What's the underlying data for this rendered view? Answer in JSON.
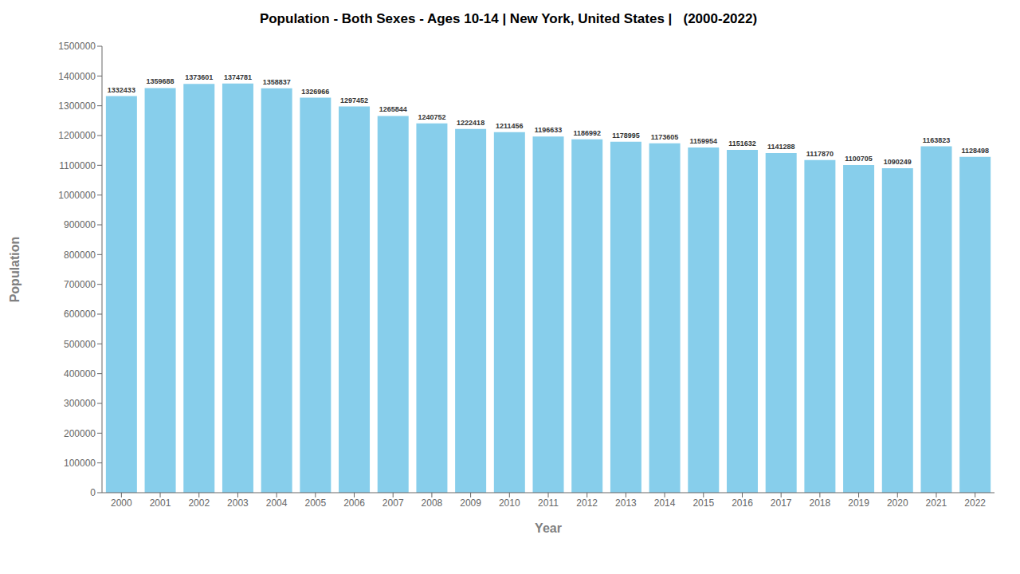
{
  "chart_data": {
    "type": "bar",
    "title": "Population - Both Sexes - Ages 10-14 | New York, United States |   (2000-2022)",
    "xlabel": "Year",
    "ylabel": "Population",
    "categories": [
      2000,
      2001,
      2002,
      2003,
      2004,
      2005,
      2006,
      2007,
      2008,
      2009,
      2010,
      2011,
      2012,
      2013,
      2014,
      2015,
      2016,
      2017,
      2018,
      2019,
      2020,
      2021,
      2022
    ],
    "values": [
      1332433,
      1359688,
      1373601,
      1374781,
      1358837,
      1326966,
      1297452,
      1265844,
      1240752,
      1222418,
      1211456,
      1196633,
      1186992,
      1178995,
      1173605,
      1159954,
      1151632,
      1141288,
      1117870,
      1100705,
      1090249,
      1163823,
      1128498
    ],
    "color": "#87CEEB",
    "ylim": [
      0,
      1500000
    ],
    "yticks": [
      0,
      100000,
      200000,
      300000,
      400000,
      500000,
      600000,
      700000,
      800000,
      900000,
      1000000,
      1100000,
      1200000,
      1300000,
      1400000,
      1500000
    ],
    "grid": false,
    "data_labels": true
  }
}
